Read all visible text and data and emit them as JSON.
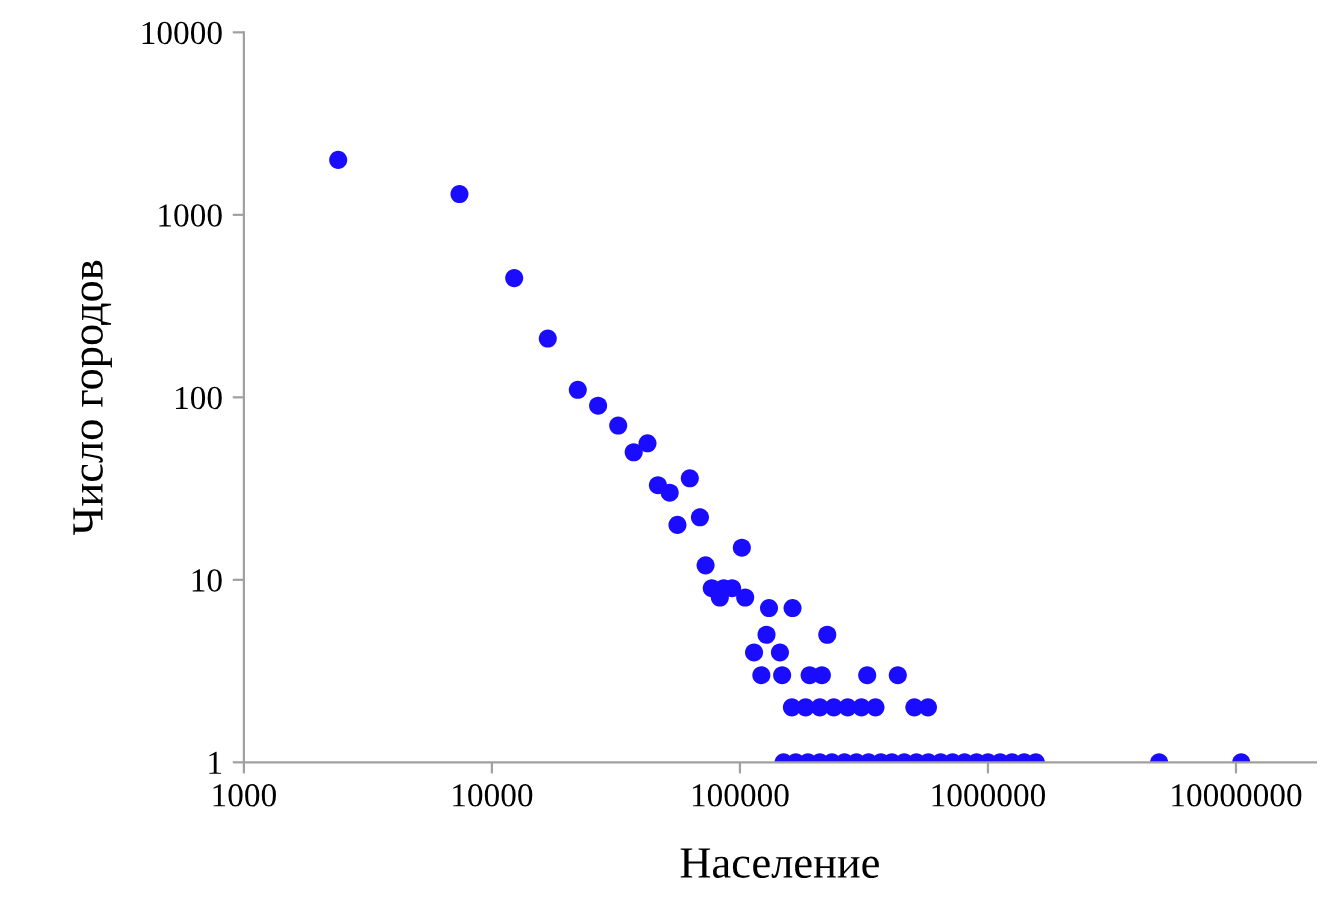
{
  "chart_data": {
    "type": "scatter",
    "xlabel": "Население",
    "ylabel": "Число городов",
    "log": "xy",
    "grid": false,
    "marker": "circle",
    "xlim": [
      1000,
      21000000
    ],
    "xticks": [
      1000,
      10000,
      100000,
      1000000,
      10000000
    ],
    "ylim": [
      1,
      10000
    ],
    "yticks": [
      1,
      10,
      100,
      1000,
      10000
    ],
    "series": [
      {
        "color": "#1a0dff",
        "x": [
          2400,
          7400,
          12300,
          16800,
          22200,
          26800,
          32300,
          37300,
          42400,
          46700,
          52100,
          62800,
          56000,
          69000,
          72700,
          101800,
          77000,
          86000,
          93000,
          105000,
          83000,
          131000,
          163000,
          128000,
          225000,
          114000,
          145000,
          122000,
          148000,
          191000,
          214000,
          326000,
          433000,
          162000,
          184000,
          210000,
          239000,
          272000,
          309000,
          352000,
          505000,
          573000,
          150000,
          168000,
          188000,
          210000,
          235000,
          264000,
          295000,
          330000,
          370000,
          410000,
          460000,
          515000,
          575000,
          645000,
          720000,
          805000,
          900000,
          1000000,
          1120000,
          1250000,
          1400000,
          1560000,
          4900000,
          10500000
        ],
        "values": [
          2000,
          1300,
          450,
          210,
          110,
          90,
          70,
          50,
          56,
          33,
          30,
          36,
          20,
          22,
          12,
          15,
          9,
          9,
          9,
          8,
          8,
          7,
          7,
          5,
          5,
          4,
          4,
          3,
          3,
          3,
          3,
          3,
          3,
          2,
          2,
          2,
          2,
          2,
          2,
          2,
          2,
          2,
          1,
          1,
          1,
          1,
          1,
          1,
          1,
          1,
          1,
          1,
          1,
          1,
          1,
          1,
          1,
          1,
          1,
          1,
          1,
          1,
          1,
          1,
          1,
          1
        ]
      }
    ]
  }
}
